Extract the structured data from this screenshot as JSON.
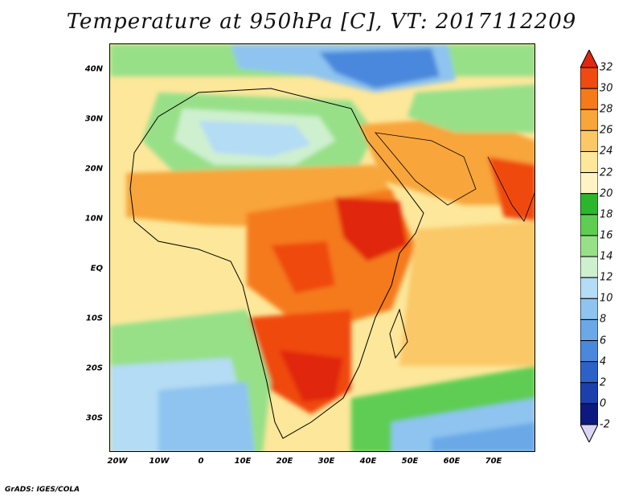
{
  "title": "Temperature at 950hPa [C], VT: 2017112209",
  "credit": "GrADS: IGES/COLA",
  "map": {
    "lat_labels": [
      "40N",
      "30N",
      "20N",
      "10N",
      "EQ",
      "10S",
      "20S",
      "30S"
    ],
    "lon_labels": [
      "20W",
      "10W",
      "0",
      "10E",
      "20E",
      "30E",
      "40E",
      "50E",
      "60E",
      "70E"
    ]
  },
  "colorbar": {
    "labels": [
      "32",
      "30",
      "28",
      "26",
      "24",
      "22",
      "20",
      "18",
      "16",
      "14",
      "12",
      "10",
      "8",
      "6",
      "4",
      "2",
      "0",
      "-2"
    ],
    "colors": [
      "#e0280e",
      "#f04a10",
      "#f57a1a",
      "#f8a53a",
      "#fbc868",
      "#fde79a",
      "#fef4c6",
      "#2cb62c",
      "#5fcd52",
      "#97e088",
      "#cff0cf",
      "#b4dcf4",
      "#8ec4ef",
      "#6aa8e8",
      "#4a88dc",
      "#2c62c8",
      "#1c3fae",
      "#0c1a80",
      "#dad4f6"
    ]
  }
}
